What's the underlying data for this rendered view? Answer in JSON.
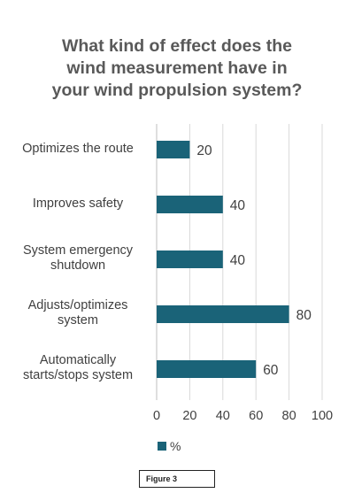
{
  "chart_data": {
    "type": "bar",
    "orientation": "horizontal",
    "title": "What kind of effect does the wind measurement have in your wind propulsion system?",
    "title_lines": [
      "What kind of effect does the",
      "wind measurement have in",
      "your wind propulsion system?"
    ],
    "categories": [
      [
        "Optimizes the route"
      ],
      [
        "Improves safety"
      ],
      [
        "System emergency",
        "shutdown"
      ],
      [
        "Adjusts/optimizes",
        "system"
      ],
      [
        "Automatically",
        "starts/stops system"
      ]
    ],
    "values": [
      20,
      40,
      40,
      80,
      60
    ],
    "series": [
      {
        "name": "%",
        "values": [
          20,
          40,
          40,
          80,
          60
        ]
      }
    ],
    "xlim": [
      0,
      100
    ],
    "xticks": [
      "0",
      "20",
      "40",
      "60",
      "80",
      "100"
    ],
    "grid": "vertical",
    "legend": "bottom",
    "data_labels": true,
    "bar_color": "#1a6378",
    "grid_color": "#d9d9d9"
  },
  "figure_label": "Figure 3"
}
